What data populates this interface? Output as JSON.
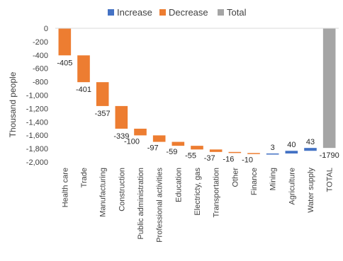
{
  "chart_data": {
    "type": "bar",
    "subtype": "waterfall",
    "title": "",
    "xlabel": "",
    "ylabel": "Thousand people",
    "ylim": [
      -2000,
      0
    ],
    "yticks": [
      0,
      -200,
      -400,
      -600,
      -800,
      -1000,
      -1200,
      -1400,
      -1600,
      -1800,
      -2000
    ],
    "ytick_labels": [
      "0",
      "-200",
      "-400",
      "-600",
      "-800",
      "-1,000",
      "-1,200",
      "-1,400",
      "-1,600",
      "-1,800",
      "-2,000"
    ],
    "grid": false,
    "legend": {
      "placement": "top-center",
      "entries": [
        {
          "name": "Increase",
          "color": "#4472c4"
        },
        {
          "name": "Decrease",
          "color": "#ed7d31"
        },
        {
          "name": "Total",
          "color": "#a5a5a5"
        }
      ]
    },
    "categories": [
      "Health care",
      "Trade",
      "Manufacturing",
      "Construction",
      "Public administration",
      "Professional activities",
      "Education",
      "Electricty, gas",
      "Transportation",
      "Other",
      "Finance",
      "Mining",
      "Agriculture",
      "Water supply",
      "TOTAL"
    ],
    "values": [
      -405,
      -401,
      -357,
      -339,
      -100,
      -97,
      -59,
      -55,
      -37,
      -16,
      -10,
      3,
      40,
      43,
      -1790
    ],
    "labels": [
      "-405",
      "-401",
      "-357",
      "-339",
      "-100",
      "-97",
      "-59",
      "-55",
      "-37",
      "-16",
      "-10",
      "3",
      "40",
      "43",
      "-1790"
    ],
    "kinds": [
      "decrease",
      "decrease",
      "decrease",
      "decrease",
      "decrease",
      "decrease",
      "decrease",
      "decrease",
      "decrease",
      "decrease",
      "decrease",
      "increase",
      "increase",
      "increase",
      "total"
    ]
  }
}
